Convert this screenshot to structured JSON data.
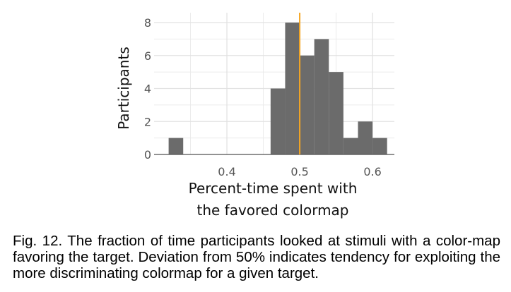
{
  "chart_data": {
    "type": "bar",
    "title": "",
    "xlabel_lines": [
      "Percent-time spent with",
      "the favored colormap"
    ],
    "ylabel": "Participants",
    "xlim": [
      0.3,
      0.63
    ],
    "ylim": [
      0,
      8.6
    ],
    "xticks": [
      0.4,
      0.5,
      0.6
    ],
    "xtick_labels": [
      "0.4",
      "0.5",
      "0.6"
    ],
    "yticks": [
      0,
      2,
      4,
      6,
      8
    ],
    "ytick_labels": [
      "0",
      "2",
      "4",
      "6",
      "8"
    ],
    "bin_width": 0.02,
    "bins": [
      {
        "x0": 0.32,
        "x1": 0.34,
        "count": 1
      },
      {
        "x0": 0.34,
        "x1": 0.36,
        "count": 0
      },
      {
        "x0": 0.36,
        "x1": 0.38,
        "count": 0
      },
      {
        "x0": 0.38,
        "x1": 0.4,
        "count": 0
      },
      {
        "x0": 0.4,
        "x1": 0.42,
        "count": 0
      },
      {
        "x0": 0.42,
        "x1": 0.44,
        "count": 0
      },
      {
        "x0": 0.44,
        "x1": 0.46,
        "count": 0
      },
      {
        "x0": 0.46,
        "x1": 0.48,
        "count": 4
      },
      {
        "x0": 0.48,
        "x1": 0.5,
        "count": 8
      },
      {
        "x0": 0.5,
        "x1": 0.52,
        "count": 6
      },
      {
        "x0": 0.52,
        "x1": 0.54,
        "count": 7
      },
      {
        "x0": 0.54,
        "x1": 0.56,
        "count": 5
      },
      {
        "x0": 0.56,
        "x1": 0.58,
        "count": 1
      },
      {
        "x0": 0.58,
        "x1": 0.6,
        "count": 2
      },
      {
        "x0": 0.6,
        "x1": 0.62,
        "count": 1
      }
    ],
    "reference_line_x": 0.5,
    "grid": true,
    "colors": {
      "bar": "#6b6b6b",
      "reference": "#f5a623",
      "grid": "#ebebeb",
      "axis": "#555555"
    }
  },
  "caption": "Fig. 12. The fraction of time participants looked at stimuli with a color-map favoring the target. Deviation from 50% indicates tendency for exploiting the more discriminating colormap for a given target."
}
